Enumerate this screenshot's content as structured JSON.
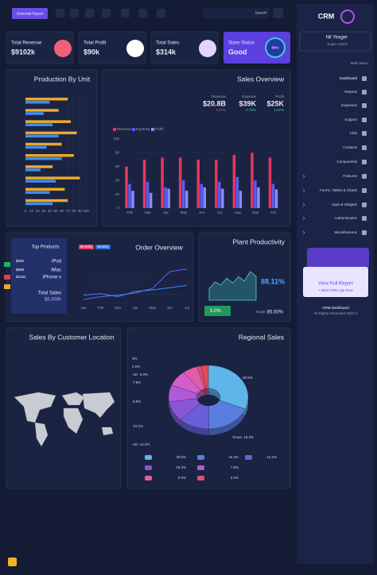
{
  "topbar": {
    "button": "Generate Report",
    "search": "Search"
  },
  "stats": [
    {
      "label": "Total Revenue",
      "value": "$9102k"
    },
    {
      "label": "Total Profit",
      "value": "$90k"
    },
    {
      "label": "Total Sales",
      "value": "$314k"
    }
  ],
  "store": {
    "label": "Store Status",
    "value": "Good",
    "percent": "88%"
  },
  "production": {
    "title": "Production By Unit",
    "series": [
      {
        "color": "#e9a92b",
        "values": [
          70,
          55,
          75,
          85,
          60,
          80,
          45,
          90,
          65,
          70
        ]
      },
      {
        "color": "#3f8cf0",
        "values": [
          40,
          30,
          45,
          55,
          35,
          60,
          25,
          50,
          40,
          45
        ]
      }
    ],
    "xlim": [
      0,
      100
    ],
    "xticks": [
      0,
      10,
      20,
      30,
      40,
      50,
      60,
      70,
      80,
      90,
      100
    ]
  },
  "sales_overview": {
    "title": "Sales Overview",
    "kpis": [
      {
        "label": "Revenue",
        "value": "$20.8B",
        "change": "7.37%"
      },
      {
        "label": "Expense",
        "value": "$39K",
        "change": "3.70%"
      },
      {
        "label": "Profit",
        "value": "$25K",
        "change": "2.37%"
      }
    ],
    "months": [
      "Feb",
      "Mar",
      "Apr",
      "May",
      "Jun",
      "Jul",
      "Aug",
      "Sep",
      "Oct"
    ],
    "series": [
      {
        "name": "Revenue",
        "color": "#e8365d",
        "values": [
          60,
          70,
          73,
          73,
          70,
          70,
          77,
          80,
          73
        ]
      },
      {
        "name": "Expense",
        "color": "#5b5bf0",
        "values": [
          35,
          38,
          30,
          40,
          35,
          38,
          45,
          40,
          35
        ]
      },
      {
        "name": "Profit",
        "color": "#8b8bff",
        "values": [
          25,
          22,
          28,
          25,
          30,
          28,
          25,
          30,
          27
        ]
      }
    ],
    "ylim": [
      0,
      100
    ],
    "yticks": [
      0,
      20,
      40,
      60,
      80,
      100
    ]
  },
  "top_products": {
    "title": "Top Products",
    "rows": [
      [
        "$250",
        "iPod"
      ],
      [
        "$589",
        "iMac"
      ],
      [
        "$1252",
        "iPhone x"
      ]
    ],
    "total_label": "Total Sales",
    "total": "$8,459k"
  },
  "order_overview": {
    "title": "Order Overview",
    "months": [
      "Jan",
      "Feb",
      "Mar",
      "Apr",
      "May",
      "Jun",
      "Jul"
    ],
    "series": [
      {
        "name": "Monthly",
        "color": "#7a5af8",
        "values": [
          10,
          18,
          22,
          28,
          40,
          85,
          92
        ]
      },
      {
        "name": "Weekly",
        "color": "#3f8cf0",
        "values": [
          22,
          26,
          18,
          32,
          36,
          42,
          48
        ]
      }
    ],
    "ylim": [
      0,
      100
    ]
  },
  "plant": {
    "title": "Plant Productivity",
    "values": [
      30,
      48,
      40,
      58,
      45,
      62,
      50,
      75,
      62
    ],
    "ylim": [
      0,
      100
    ],
    "value": "88.11%",
    "badge": "5.0%",
    "target_label": "Target",
    "target": "85.00%"
  },
  "location": {
    "title": "Sales By Customer Location"
  },
  "regional": {
    "title": "Regional Sales",
    "slices": [
      {
        "label": "30.5%",
        "value": 30.5,
        "color": "#5fb5e8"
      },
      {
        "label": "Texas: 18.3%",
        "value": 18.3,
        "color": "#5a7ee0"
      },
      {
        "label": "UK: 12.2%",
        "value": 12.2,
        "color": "#6a5ed8"
      },
      {
        "label": "10.1%",
        "value": 10.1,
        "color": "#8a56d6"
      },
      {
        "label": "8.5%",
        "value": 8.5,
        "color": "#b15ad6"
      },
      {
        "label": "7.8%",
        "value": 7.8,
        "color": "#d45ec8"
      },
      {
        "label": "UK: 6.0%",
        "value": 6.0,
        "color": "#e35ca8"
      },
      {
        "label": "1.6%",
        "value": 1.6,
        "color": "#e24d7c"
      },
      {
        "label": "3%",
        "value": 3,
        "color": "#e04a5a"
      }
    ],
    "table": [
      [
        "30.5%",
        "16.3%",
        "12.2%"
      ],
      [
        "18.3%",
        "7.8%"
      ],
      [
        "6.0%",
        "3.0%"
      ]
    ]
  },
  "sidebar": {
    "logo": "CRM",
    "user": "Nil Yeager",
    "role": "Super Admin",
    "menu_title": "Main Menu",
    "menu": [
      "Dashboard",
      "Reports",
      "Expenses",
      "Support",
      "Chat",
      "Contacts",
      "Components",
      "Features",
      "Forms, Tables & Charts",
      "Apps & Widgets",
      "Authentication",
      "Miscellaneous"
    ],
    "promo_button": "View Full Report",
    "promo_text": "+ Best CRM App here",
    "footer_title": "CRM Dashboard",
    "footer": "All Rights Reserved 2022 ©"
  }
}
